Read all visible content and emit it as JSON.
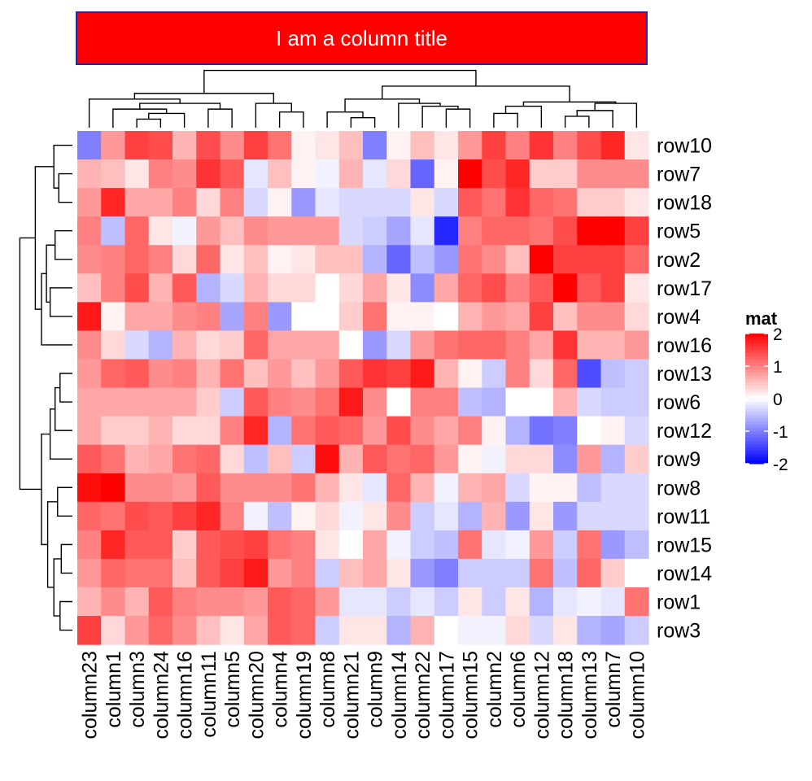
{
  "chart_data": {
    "type": "heatmap",
    "title": "I am a column title",
    "legend": {
      "title": "mat",
      "ticks": [
        2,
        1,
        0,
        -1,
        -2
      ],
      "tick_labels": [
        "2",
        "1",
        "0",
        "-1",
        "-2"
      ],
      "color_low": "#0000ff",
      "color_mid": "#ffffff",
      "color_high": "#ff0000",
      "placement": "right"
    },
    "columns": [
      "column23",
      "column1",
      "column3",
      "column24",
      "column16",
      "column11",
      "column5",
      "column20",
      "column4",
      "column19",
      "column8",
      "column21",
      "column9",
      "column14",
      "column22",
      "column17",
      "column15",
      "column2",
      "column6",
      "column12",
      "column18",
      "column13",
      "column7",
      "column10"
    ],
    "rows": [
      "row10",
      "row7",
      "row18",
      "row5",
      "row2",
      "row17",
      "row4",
      "row16",
      "row13",
      "row6",
      "row12",
      "row9",
      "row8",
      "row11",
      "row15",
      "row14",
      "row1",
      "row3"
    ],
    "values": [
      [
        -1.0,
        0.8,
        1.5,
        1.4,
        0.6,
        1.4,
        0.9,
        1.5,
        1.1,
        0.1,
        0.2,
        0.5,
        -1.0,
        0.1,
        0.5,
        0.2,
        0.8,
        1.5,
        1.0,
        1.6,
        1.0,
        1.4,
        1.7,
        0.2
      ],
      [
        0.6,
        0.5,
        0.2,
        1.0,
        0.9,
        1.6,
        1.3,
        -0.2,
        0.5,
        0.1,
        -0.1,
        0.6,
        -0.2,
        0.3,
        -1.2,
        0.1,
        2.0,
        1.4,
        1.7,
        0.4,
        0.4,
        0.9,
        0.9,
        0.9
      ],
      [
        0.8,
        1.7,
        0.7,
        0.7,
        1.0,
        0.3,
        1.0,
        -0.3,
        0.1,
        -0.8,
        -0.2,
        -0.3,
        -0.3,
        -0.3,
        0.2,
        -0.3,
        1.3,
        1.1,
        1.6,
        1.2,
        1.1,
        0.4,
        0.4,
        0.2
      ],
      [
        1.0,
        -0.5,
        1.2,
        0.2,
        -0.1,
        0.8,
        0.5,
        0.9,
        0.8,
        0.8,
        0.8,
        -0.3,
        -0.4,
        -0.7,
        -0.2,
        -1.7,
        1.0,
        1.2,
        1.2,
        1.1,
        1.4,
        2.0,
        2.0,
        1.5
      ],
      [
        0.9,
        1.0,
        1.2,
        1.0,
        0.3,
        1.2,
        0.2,
        0.5,
        0.1,
        0.2,
        0.5,
        0.5,
        -0.6,
        -1.2,
        -0.5,
        -0.8,
        1.1,
        0.9,
        0.5,
        2.0,
        1.5,
        1.5,
        1.5,
        1.2
      ],
      [
        0.5,
        1.0,
        1.4,
        0.6,
        1.3,
        -0.6,
        -0.3,
        0.6,
        0.3,
        0.3,
        0.0,
        0.3,
        0.7,
        0.2,
        -0.9,
        0.7,
        1.2,
        1.4,
        1.0,
        1.3,
        2.0,
        1.3,
        1.5,
        0.2
      ],
      [
        1.8,
        0.1,
        0.7,
        0.7,
        0.9,
        1.0,
        -0.7,
        1.0,
        -0.8,
        0.0,
        0.0,
        0.4,
        1.1,
        0.1,
        0.1,
        0.0,
        0.6,
        0.8,
        0.7,
        1.5,
        0.5,
        0.9,
        0.9,
        0.3
      ],
      [
        0.9,
        0.3,
        -0.3,
        -0.6,
        0.6,
        0.3,
        0.4,
        1.2,
        0.7,
        0.7,
        0.7,
        0.0,
        -0.8,
        -0.3,
        0.8,
        1.1,
        1.2,
        1.2,
        1.0,
        0.7,
        1.6,
        0.6,
        0.6,
        0.8
      ],
      [
        0.8,
        1.2,
        1.3,
        0.9,
        1.0,
        0.6,
        1.1,
        0.5,
        0.8,
        0.5,
        0.8,
        1.3,
        1.6,
        1.5,
        1.8,
        0.6,
        0.1,
        -0.4,
        1.0,
        0.3,
        1.2,
        -1.4,
        -0.5,
        -0.4
      ],
      [
        0.7,
        0.7,
        0.7,
        0.7,
        0.7,
        0.4,
        -0.4,
        1.3,
        1.0,
        0.9,
        1.1,
        1.8,
        0.9,
        0.0,
        1.0,
        1.0,
        -0.5,
        -0.6,
        0.0,
        0.0,
        0.6,
        -0.3,
        -0.4,
        -0.4
      ],
      [
        0.7,
        0.4,
        0.4,
        0.6,
        0.3,
        0.3,
        1.0,
        1.7,
        -0.6,
        1.1,
        1.3,
        1.2,
        0.8,
        1.4,
        0.9,
        0.7,
        1.0,
        0.1,
        -0.6,
        -1.1,
        -1.0,
        0.0,
        0.1,
        -0.3
      ],
      [
        1.3,
        1.1,
        0.6,
        0.7,
        1.1,
        1.2,
        0.3,
        -0.5,
        0.5,
        -0.4,
        1.9,
        0.6,
        1.3,
        1.1,
        1.2,
        0.8,
        0.1,
        -0.1,
        0.3,
        0.3,
        -0.9,
        0.8,
        -0.6,
        0.4
      ],
      [
        1.9,
        2.0,
        0.9,
        0.9,
        0.8,
        1.3,
        0.9,
        0.9,
        0.9,
        1.1,
        0.6,
        0.2,
        -0.2,
        1.2,
        0.6,
        -0.1,
        0.6,
        0.7,
        -0.3,
        0.1,
        0.1,
        -0.5,
        -0.3,
        -0.3
      ],
      [
        1.2,
        1.1,
        1.4,
        1.3,
        1.5,
        1.7,
        1.0,
        -0.1,
        -0.5,
        0.1,
        0.3,
        -0.1,
        0.2,
        0.9,
        -0.4,
        -0.2,
        -0.6,
        0.6,
        -0.8,
        0.2,
        -0.8,
        -0.3,
        -0.3,
        -0.3
      ],
      [
        1.0,
        1.7,
        1.3,
        1.3,
        0.4,
        1.3,
        1.4,
        1.5,
        1.1,
        1.0,
        0.2,
        0.0,
        0.7,
        -0.1,
        -0.4,
        -0.5,
        1.1,
        -0.2,
        -0.1,
        0.8,
        -0.4,
        1.1,
        -0.8,
        -0.5
      ],
      [
        0.8,
        1.2,
        1.1,
        1.1,
        0.5,
        1.3,
        1.5,
        1.8,
        0.8,
        1.0,
        -0.4,
        0.5,
        0.7,
        0.2,
        -0.8,
        -1.0,
        -0.4,
        -0.4,
        -0.4,
        1.1,
        -0.5,
        1.2,
        0.4,
        0.0
      ],
      [
        0.6,
        0.9,
        0.6,
        1.3,
        1.0,
        0.9,
        0.9,
        0.8,
        1.3,
        1.2,
        0.8,
        -0.2,
        -0.2,
        -0.4,
        -0.2,
        -0.4,
        0.2,
        -0.4,
        0.2,
        -0.6,
        -0.2,
        -0.1,
        -0.2,
        1.1
      ],
      [
        1.5,
        0.3,
        0.8,
        1.2,
        0.9,
        0.5,
        0.2,
        0.7,
        1.3,
        1.2,
        -0.4,
        0.2,
        0.2,
        -0.6,
        0.6,
        0.0,
        -0.1,
        -0.1,
        0.3,
        -0.3,
        0.2,
        -0.6,
        -0.7,
        -0.4
      ]
    ]
  }
}
